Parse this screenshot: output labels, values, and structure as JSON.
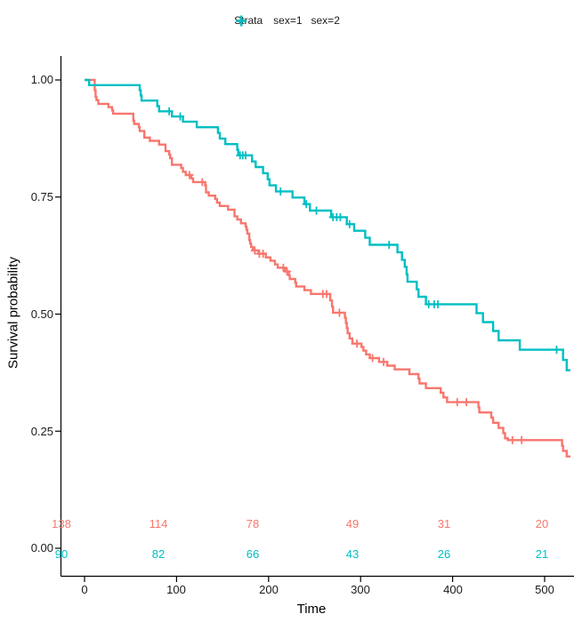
{
  "legend": {
    "title": "Strata",
    "items": [
      {
        "label": "sex=1",
        "color": "#F8766D",
        "key_icon": "plus-censor-icon"
      },
      {
        "label": "sex=2",
        "color": "#00BFC4",
        "key_icon": "plus-censor-icon"
      }
    ]
  },
  "axes": {
    "x": {
      "label": "Time",
      "ticks": [
        "0",
        "100",
        "200",
        "300",
        "400",
        "500"
      ]
    },
    "y": {
      "label": "Survival probability",
      "ticks": [
        "1.00",
        "0.75",
        "0.50",
        "0.25",
        "0.00"
      ]
    }
  },
  "risk_table": {
    "times": [
      0,
      100,
      200,
      300,
      400,
      500
    ],
    "rows": [
      {
        "strata": "sex=1",
        "color": "#F8766D",
        "counts": [
          "138",
          "114",
          "78",
          "49",
          "31",
          "20"
        ]
      },
      {
        "strata": "sex=2",
        "color": "#00BFC4",
        "counts": [
          "90",
          "82",
          "66",
          "43",
          "26",
          "21"
        ]
      }
    ]
  },
  "chart_data": {
    "type": "line",
    "variant": "kaplan_meier_step_curve",
    "title": "",
    "xlabel": "Time",
    "ylabel": "Survival probability",
    "xlim": [
      0,
      528
    ],
    "ylim": [
      0,
      1
    ],
    "xticks": [
      0,
      100,
      200,
      300,
      400,
      500
    ],
    "yticks": [
      0,
      0.25,
      0.5,
      0.75,
      1
    ],
    "grid": false,
    "legend_position": "top",
    "series": [
      {
        "name": "sex=1",
        "color": "#F8766D",
        "end_time": 528,
        "steps": [
          [
            0,
            1.0
          ],
          [
            11,
            0.978
          ],
          [
            12,
            0.964
          ],
          [
            13,
            0.957
          ],
          [
            15,
            0.949
          ],
          [
            26,
            0.942
          ],
          [
            30,
            0.935
          ],
          [
            31,
            0.928
          ],
          [
            53,
            0.913
          ],
          [
            54,
            0.906
          ],
          [
            59,
            0.899
          ],
          [
            60,
            0.891
          ],
          [
            65,
            0.877
          ],
          [
            71,
            0.87
          ],
          [
            81,
            0.862
          ],
          [
            88,
            0.848
          ],
          [
            92,
            0.841
          ],
          [
            93,
            0.833
          ],
          [
            95,
            0.819
          ],
          [
            105,
            0.812
          ],
          [
            107,
            0.804
          ],
          [
            110,
            0.797
          ],
          [
            116,
            0.79
          ],
          [
            118,
            0.782
          ],
          [
            131,
            0.775
          ],
          [
            132,
            0.76
          ],
          [
            135,
            0.753
          ],
          [
            142,
            0.746
          ],
          [
            144,
            0.738
          ],
          [
            147,
            0.731
          ],
          [
            156,
            0.723
          ],
          [
            163,
            0.709
          ],
          [
            166,
            0.702
          ],
          [
            170,
            0.694
          ],
          [
            175,
            0.687
          ],
          [
            176,
            0.68
          ],
          [
            177,
            0.672
          ],
          [
            179,
            0.658
          ],
          [
            180,
            0.651
          ],
          [
            181,
            0.643
          ],
          [
            183,
            0.636
          ],
          [
            189,
            0.629
          ],
          [
            197,
            0.621
          ],
          [
            202,
            0.614
          ],
          [
            207,
            0.606
          ],
          [
            210,
            0.599
          ],
          [
            218,
            0.591
          ],
          [
            222,
            0.583
          ],
          [
            223,
            0.575
          ],
          [
            229,
            0.567
          ],
          [
            230,
            0.559
          ],
          [
            239,
            0.551
          ],
          [
            246,
            0.543
          ],
          [
            267,
            0.529
          ],
          [
            269,
            0.516
          ],
          [
            270,
            0.503
          ],
          [
            283,
            0.492
          ],
          [
            284,
            0.481
          ],
          [
            285,
            0.47
          ],
          [
            286,
            0.459
          ],
          [
            288,
            0.448
          ],
          [
            291,
            0.437
          ],
          [
            301,
            0.43
          ],
          [
            303,
            0.422
          ],
          [
            306,
            0.414
          ],
          [
            310,
            0.406
          ],
          [
            320,
            0.398
          ],
          [
            329,
            0.39
          ],
          [
            337,
            0.382
          ],
          [
            353,
            0.372
          ],
          [
            363,
            0.362
          ],
          [
            364,
            0.352
          ],
          [
            371,
            0.342
          ],
          [
            387,
            0.332
          ],
          [
            390,
            0.322
          ],
          [
            394,
            0.312
          ],
          [
            428,
            0.301
          ],
          [
            429,
            0.29
          ],
          [
            442,
            0.279
          ],
          [
            444,
            0.268
          ],
          [
            450,
            0.257
          ],
          [
            455,
            0.246
          ],
          [
            457,
            0.235
          ],
          [
            460,
            0.231
          ],
          [
            519,
            0.219
          ],
          [
            520,
            0.208
          ],
          [
            524,
            0.196
          ]
        ],
        "censor_times": [
          114,
          128,
          185,
          190,
          194,
          216,
          220,
          259,
          263,
          277,
          296,
          313,
          325,
          405,
          415,
          465,
          475
        ],
        "risk_counts": [
          138,
          114,
          78,
          49,
          31,
          20
        ]
      },
      {
        "name": "sex=2",
        "color": "#00BFC4",
        "end_time": 528,
        "steps": [
          [
            0,
            1.0
          ],
          [
            5,
            0.989
          ],
          [
            60,
            0.978
          ],
          [
            61,
            0.967
          ],
          [
            62,
            0.956
          ],
          [
            79,
            0.944
          ],
          [
            81,
            0.933
          ],
          [
            95,
            0.922
          ],
          [
            107,
            0.911
          ],
          [
            122,
            0.899
          ],
          [
            145,
            0.887
          ],
          [
            147,
            0.875
          ],
          [
            153,
            0.863
          ],
          [
            166,
            0.851
          ],
          [
            167,
            0.839
          ],
          [
            182,
            0.826
          ],
          [
            186,
            0.814
          ],
          [
            194,
            0.801
          ],
          [
            199,
            0.788
          ],
          [
            201,
            0.775
          ],
          [
            208,
            0.762
          ],
          [
            226,
            0.749
          ],
          [
            239,
            0.735
          ],
          [
            245,
            0.721
          ],
          [
            268,
            0.707
          ],
          [
            285,
            0.692
          ],
          [
            293,
            0.678
          ],
          [
            305,
            0.663
          ],
          [
            310,
            0.648
          ],
          [
            340,
            0.632
          ],
          [
            345,
            0.616
          ],
          [
            348,
            0.601
          ],
          [
            350,
            0.585
          ],
          [
            351,
            0.569
          ],
          [
            361,
            0.553
          ],
          [
            363,
            0.537
          ],
          [
            371,
            0.521
          ],
          [
            426,
            0.502
          ],
          [
            433,
            0.483
          ],
          [
            444,
            0.464
          ],
          [
            450,
            0.444
          ],
          [
            473,
            0.424
          ],
          [
            520,
            0.402
          ],
          [
            524,
            0.38
          ]
        ],
        "censor_times": [
          92,
          104,
          169,
          172,
          175,
          213,
          241,
          252,
          270,
          274,
          278,
          288,
          331,
          374,
          380,
          384,
          513
        ],
        "risk_counts": [
          90,
          82,
          66,
          43,
          26,
          21
        ]
      }
    ],
    "risk_count_times": [
      0,
      100,
      200,
      300,
      400,
      500
    ]
  }
}
